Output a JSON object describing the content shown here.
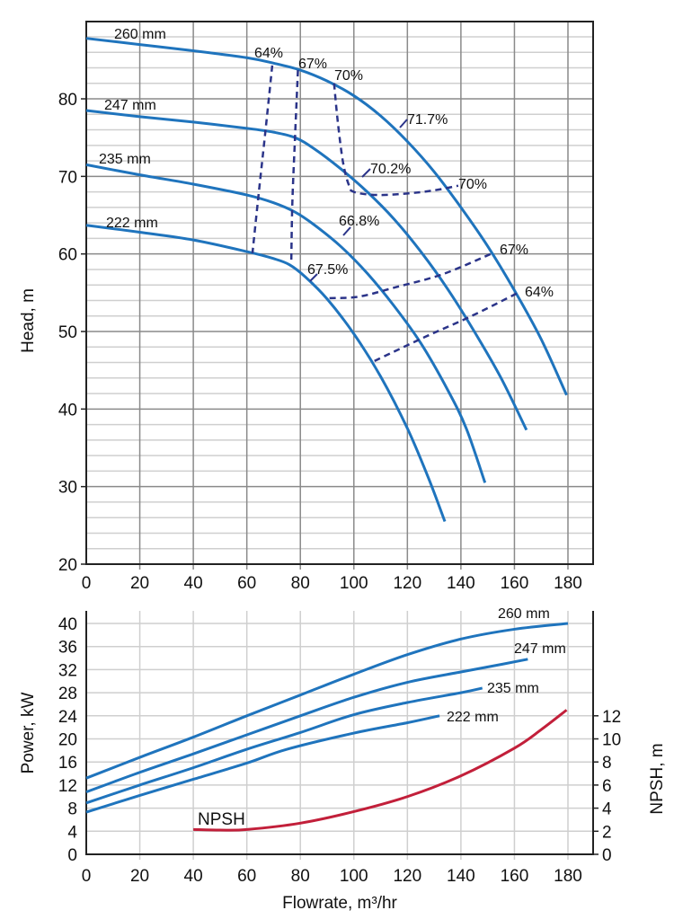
{
  "colors": {
    "head": "#1f74bd",
    "efficiency": "#2b3489",
    "npsh": "#c21f3a",
    "grid_major": "#8a8a8a",
    "grid_minor": "#cfcfcf"
  },
  "chart_data": [
    {
      "type": "line",
      "ylabel": "Head, m",
      "xlabel": "",
      "xlim": [
        0,
        189.5
      ],
      "ylim": [
        20,
        90
      ],
      "xticks": [
        "0",
        "20",
        "40",
        "60",
        "80",
        "100",
        "120",
        "140",
        "160",
        "180"
      ],
      "yticks": [
        "20",
        "30",
        "40",
        "50",
        "60",
        "70",
        "80"
      ],
      "grid": true,
      "series": [
        {
          "name": "260 mm",
          "x": [
            0,
            20,
            40,
            60,
            70,
            80,
            90,
            100,
            110,
            120,
            130,
            140,
            150,
            160,
            170,
            179.5
          ],
          "y": [
            87.8,
            87,
            86.2,
            85.3,
            84.6,
            83.7,
            82.3,
            80.4,
            77.8,
            74.5,
            70.6,
            66,
            61,
            55.3,
            49,
            41.8
          ]
        },
        {
          "name": "247 mm",
          "x": [
            0,
            20,
            40,
            60,
            70,
            78,
            85,
            95,
            105,
            115,
            125,
            135,
            145,
            155,
            164.5
          ],
          "y": [
            78.5,
            77.7,
            77,
            76.2,
            75.7,
            75,
            73.6,
            71,
            68,
            64.5,
            60.3,
            55.5,
            50,
            44,
            37.3
          ]
        },
        {
          "name": "235 mm",
          "x": [
            0,
            20,
            40,
            60,
            70,
            78,
            85,
            95,
            105,
            115,
            125,
            135,
            142,
            149
          ],
          "y": [
            71.5,
            70.2,
            69,
            67.6,
            66.6,
            65.4,
            63.8,
            61,
            57.5,
            53.3,
            48.5,
            42.5,
            37.5,
            30.5
          ]
        },
        {
          "name": "222 mm",
          "x": [
            0,
            20,
            40,
            60,
            70,
            76,
            82,
            90,
            100,
            110,
            120,
            128,
            134
          ],
          "y": [
            63.7,
            62.8,
            61.8,
            60.3,
            59.4,
            58.6,
            57,
            54.2,
            49.7,
            44.2,
            37.5,
            31,
            25.5
          ]
        }
      ],
      "efficiency_contours": [
        {
          "label": "64%",
          "x": [
            69.5,
            67,
            64.5,
            62.1
          ],
          "y": [
            84.3,
            76,
            68,
            60.1
          ]
        },
        {
          "label": "67%",
          "x": [
            79.1,
            78,
            77,
            76.6
          ],
          "y": [
            83.7,
            75,
            66.5,
            58.8
          ]
        },
        {
          "label": "70%",
          "x": [
            92.6,
            94,
            95.9,
            98,
            100,
            108.8,
            120,
            130,
            139
          ],
          "y": [
            82,
            77,
            71.9,
            69,
            68,
            67.6,
            67.8,
            68.2,
            68.8
          ]
        },
        {
          "label": "67%",
          "x": [
            90.9,
            102,
            115.5,
            133.3,
            152.5
          ],
          "y": [
            54.3,
            54.5,
            55.7,
            57.4,
            60.2
          ]
        },
        {
          "label": "64%",
          "x": [
            107.7,
            126.6,
            143.4,
            160.8
          ],
          "y": [
            46.2,
            49.3,
            51.9,
            54.9
          ]
        }
      ],
      "efficiency_labels": [
        "64%",
        "67%",
        "70%",
        "71.7%",
        "70.2%",
        "70%",
        "66.8%",
        "67%",
        "64%",
        "67.5%"
      ]
    },
    {
      "type": "line",
      "xlabel": "Flowrate, m³/hr",
      "ylabel": "Power, kW",
      "y2label": "NPSH, m",
      "xlim": [
        0,
        189.5
      ],
      "ylim": [
        0,
        42
      ],
      "y2lim": [
        0,
        21
      ],
      "xticks": [
        "0",
        "20",
        "40",
        "60",
        "80",
        "100",
        "120",
        "140",
        "160",
        "180"
      ],
      "yticks": [
        "0",
        "4",
        "8",
        "12",
        "16",
        "20",
        "24",
        "28",
        "32",
        "36",
        "40"
      ],
      "y2ticks": [
        "0",
        "2",
        "4",
        "6",
        "8",
        "10",
        "12"
      ],
      "grid": true,
      "series": [
        {
          "name": "260 mm",
          "x": [
            0,
            20,
            40,
            60,
            80,
            100,
            120,
            140,
            160,
            180
          ],
          "y": [
            13.2,
            16.8,
            20.3,
            24,
            27.6,
            31.2,
            34.6,
            37.3,
            39,
            40
          ]
        },
        {
          "name": "247 mm",
          "x": [
            0,
            20,
            40,
            60,
            80,
            100,
            120,
            140,
            155,
            165
          ],
          "y": [
            10.8,
            14.2,
            17.4,
            20.7,
            24,
            27.2,
            29.8,
            31.6,
            32.9,
            33.8
          ]
        },
        {
          "name": "235 mm",
          "x": [
            0,
            20,
            40,
            60,
            80,
            100,
            120,
            140,
            148
          ],
          "y": [
            8.9,
            12,
            15,
            18.2,
            21.1,
            24.2,
            26.3,
            28,
            28.8
          ]
        },
        {
          "name": "222 mm",
          "x": [
            0,
            20,
            40,
            60,
            75,
            100,
            120,
            132
          ],
          "y": [
            7.3,
            10.2,
            13,
            15.8,
            18.2,
            21,
            22.8,
            24
          ]
        },
        {
          "name": "NPSH",
          "axis": "y2",
          "x": [
            40,
            50,
            60,
            80,
            100,
            120,
            140,
            160,
            170,
            179.5
          ],
          "y": [
            2.15,
            2.1,
            2.15,
            2.7,
            3.7,
            5,
            6.8,
            9.2,
            10.8,
            12.5
          ]
        }
      ]
    }
  ]
}
